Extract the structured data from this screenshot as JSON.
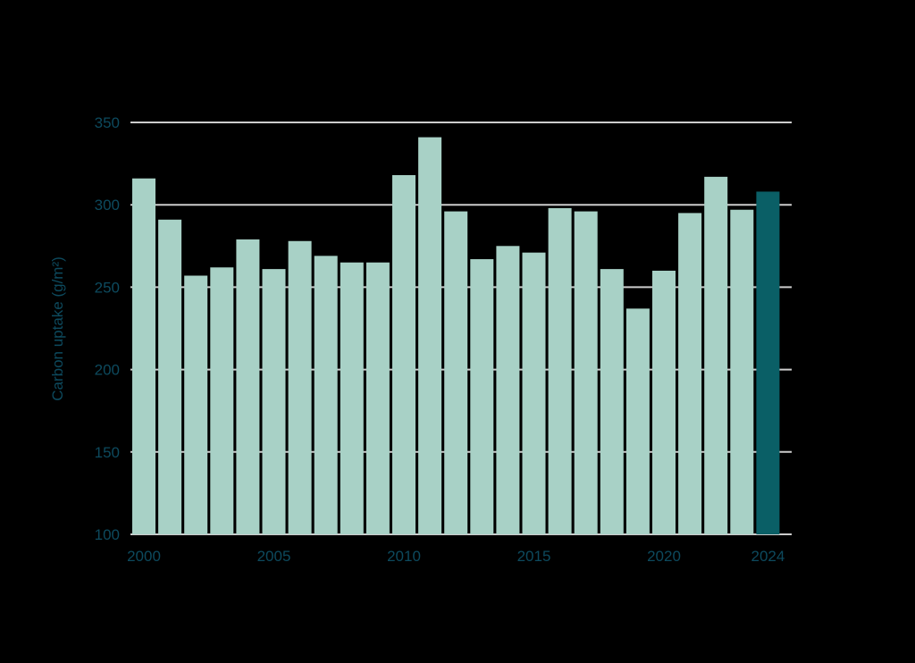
{
  "chart_data": {
    "type": "bar",
    "title": "",
    "xlabel": "",
    "ylabel": "Carbon uptake (g/m²)",
    "ylim": [
      100,
      350
    ],
    "yticks": [
      100,
      150,
      200,
      250,
      300,
      350
    ],
    "xtick_labels": [
      "2000",
      "2005",
      "2010",
      "2015",
      "2020",
      "2024"
    ],
    "grid": true,
    "legend": null,
    "categories": [
      "2000",
      "2001",
      "2002",
      "2003",
      "2004",
      "2005",
      "2006",
      "2007",
      "2008",
      "2009",
      "2010",
      "2011",
      "2012",
      "2013",
      "2014",
      "2015",
      "2016",
      "2017",
      "2018",
      "2019",
      "2020",
      "2021",
      "2022",
      "2023",
      "2024"
    ],
    "values": [
      316,
      291,
      257,
      262,
      279,
      261,
      278,
      269,
      265,
      265,
      318,
      341,
      296,
      267,
      275,
      271,
      298,
      296,
      261,
      237,
      260,
      295,
      317,
      297,
      308
    ],
    "highlight": {
      "category": "2024",
      "index": 24
    }
  },
  "colors": {
    "background": "#000000",
    "bar": "#a8d1c6",
    "bar_highlight": "#0a5f66",
    "gridline": "#cccccc",
    "text": "#0d4a5e"
  }
}
